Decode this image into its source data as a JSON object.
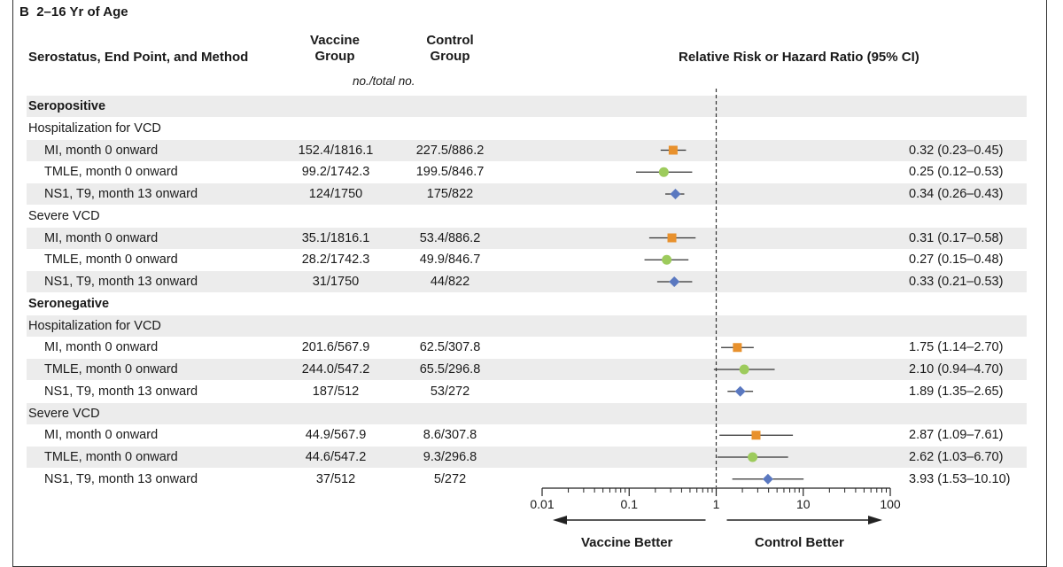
{
  "panel": {
    "letter": "B",
    "title": "2–16 Yr of Age"
  },
  "headers": {
    "col1": "Serostatus, End Point, and Method",
    "vaccine_l1": "Vaccine",
    "vaccine_l2": "Group",
    "control_l1": "Control",
    "control_l2": "Group",
    "ratio": "Relative Risk or Hazard Ratio (95% CI)",
    "units": "no./total no."
  },
  "rows": [
    {
      "label": "Seropositive",
      "level": "group"
    },
    {
      "label": "Hospitalization for VCD",
      "level": "sub"
    },
    {
      "label": "MI, month 0 onward",
      "level": "method",
      "vaccine": "152.4/1816.1",
      "control": "227.5/886.2",
      "ci_text": "0.32 (0.23–0.45)",
      "est": 0.32,
      "lo": 0.23,
      "hi": 0.45,
      "marker": "square"
    },
    {
      "label": "TMLE, month 0 onward",
      "level": "method",
      "vaccine": "99.2/1742.3",
      "control": "199.5/846.7",
      "ci_text": "0.25 (0.12–0.53)",
      "est": 0.25,
      "lo": 0.12,
      "hi": 0.53,
      "marker": "circle"
    },
    {
      "label": "NS1, T9, month 13 onward",
      "level": "method",
      "vaccine": "124/1750",
      "control": "175/822",
      "ci_text": "0.34 (0.26–0.43)",
      "est": 0.34,
      "lo": 0.26,
      "hi": 0.43,
      "marker": "diamond"
    },
    {
      "label": "Severe VCD",
      "level": "sub"
    },
    {
      "label": "MI, month 0 onward",
      "level": "method",
      "vaccine": "35.1/1816.1",
      "control": "53.4/886.2",
      "ci_text": "0.31 (0.17–0.58)",
      "est": 0.31,
      "lo": 0.17,
      "hi": 0.58,
      "marker": "square"
    },
    {
      "label": "TMLE, month 0 onward",
      "level": "method",
      "vaccine": "28.2/1742.3",
      "control": "49.9/846.7",
      "ci_text": "0.27 (0.15–0.48)",
      "est": 0.27,
      "lo": 0.15,
      "hi": 0.48,
      "marker": "circle"
    },
    {
      "label": "NS1, T9, month 13 onward",
      "level": "method",
      "vaccine": "31/1750",
      "control": "44/822",
      "ci_text": "0.33 (0.21–0.53)",
      "est": 0.33,
      "lo": 0.21,
      "hi": 0.53,
      "marker": "diamond"
    },
    {
      "label": "Seronegative",
      "level": "group"
    },
    {
      "label": "Hospitalization for VCD",
      "level": "sub"
    },
    {
      "label": "MI, month 0 onward",
      "level": "method",
      "vaccine": "201.6/567.9",
      "control": "62.5/307.8",
      "ci_text": "1.75 (1.14–2.70)",
      "est": 1.75,
      "lo": 1.14,
      "hi": 2.7,
      "marker": "square"
    },
    {
      "label": "TMLE, month 0 onward",
      "level": "method",
      "vaccine": "244.0/547.2",
      "control": "65.5/296.8",
      "ci_text": "2.10 (0.94–4.70)",
      "est": 2.1,
      "lo": 0.94,
      "hi": 4.7,
      "marker": "circle"
    },
    {
      "label": "NS1, T9, month 13 onward",
      "level": "method",
      "vaccine": "187/512",
      "control": "53/272",
      "ci_text": "1.89 (1.35–2.65)",
      "est": 1.89,
      "lo": 1.35,
      "hi": 2.65,
      "marker": "diamond"
    },
    {
      "label": "Severe VCD",
      "level": "sub"
    },
    {
      "label": "MI, month 0 onward",
      "level": "method",
      "vaccine": "44.9/567.9",
      "control": "8.6/307.8",
      "ci_text": "2.87 (1.09–7.61)",
      "est": 2.87,
      "lo": 1.09,
      "hi": 7.61,
      "marker": "square"
    },
    {
      "label": "TMLE, month 0 onward",
      "level": "method",
      "vaccine": "44.6/547.2",
      "control": "9.3/296.8",
      "ci_text": "2.62 (1.03–6.70)",
      "est": 2.62,
      "lo": 1.03,
      "hi": 6.7,
      "marker": "circle"
    },
    {
      "label": "NS1, T9, month 13 onward",
      "level": "method",
      "vaccine": "37/512",
      "control": "5/272",
      "ci_text": "3.93 (1.53–10.10)",
      "est": 3.93,
      "lo": 1.53,
      "hi": 10.1,
      "marker": "diamond"
    }
  ],
  "chart_data": {
    "type": "scatter",
    "title": "Relative Risk or Hazard Ratio (95% CI)",
    "xscale": "log",
    "xlim": [
      0.01,
      100
    ],
    "ticks": [
      {
        "value": 0.01,
        "label": "0.01"
      },
      {
        "value": 0.1,
        "label": "0.1"
      },
      {
        "value": 1,
        "label": "1"
      },
      {
        "value": 10,
        "label": "10"
      },
      {
        "value": 100,
        "label": "100"
      }
    ],
    "reference_line": 1,
    "left_annotation": "Vaccine Better",
    "right_annotation": "Control Better",
    "colors": {
      "square": "#e8912d",
      "circle": "#9dcb5c",
      "diamond": "#5a78c0"
    }
  }
}
